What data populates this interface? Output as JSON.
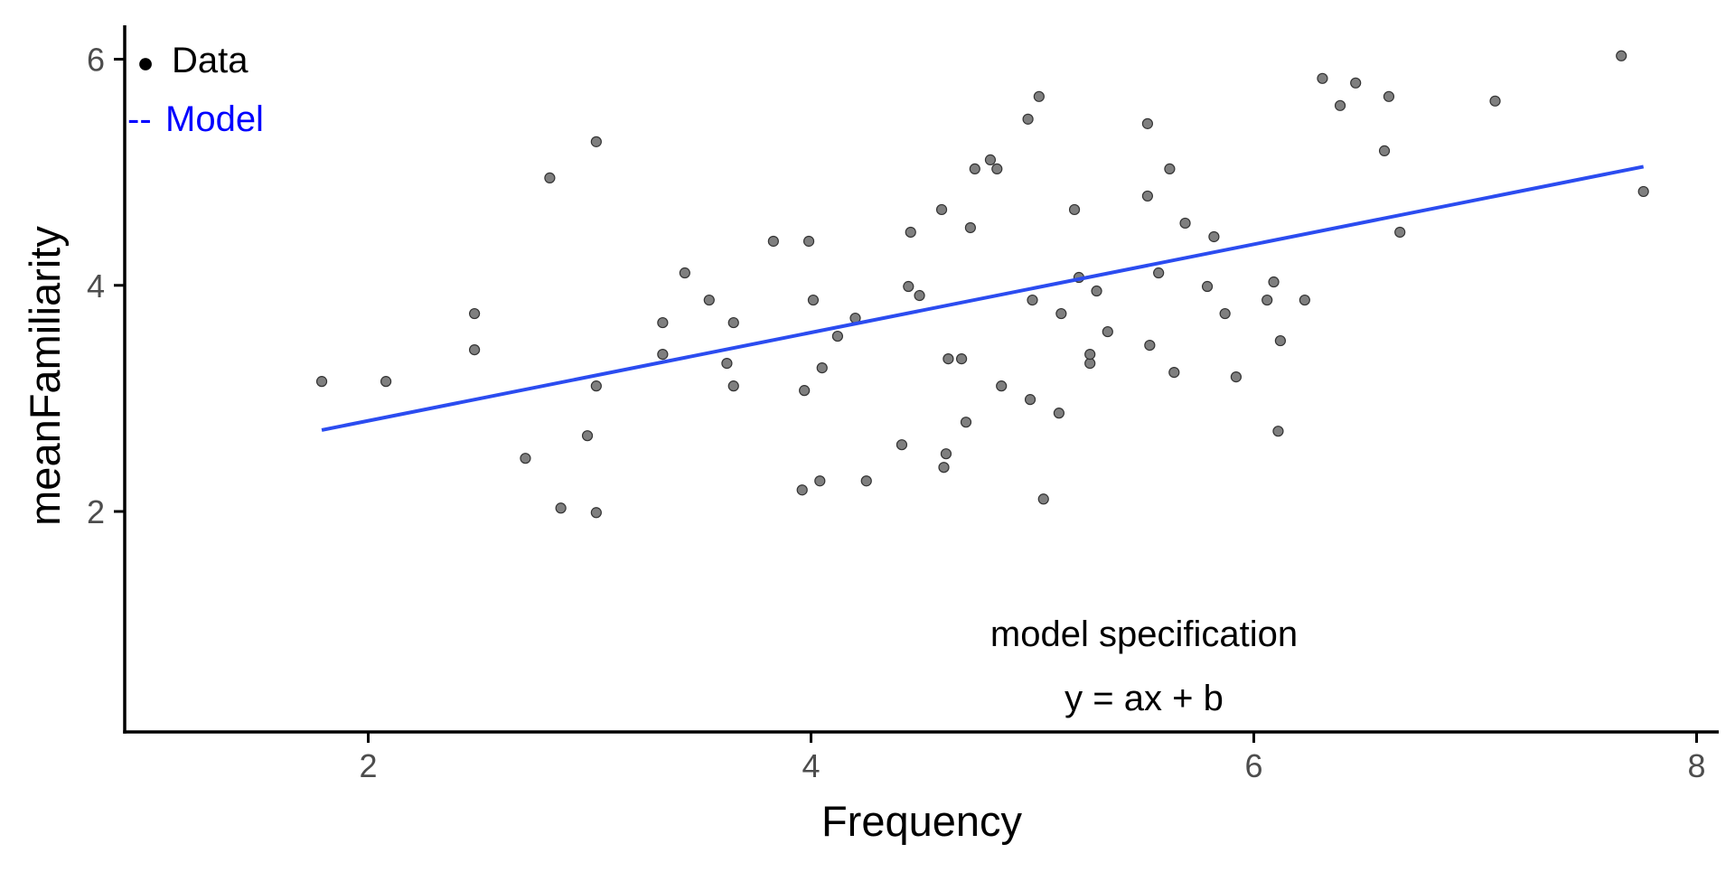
{
  "chart_data": {
    "type": "scatter",
    "title": "",
    "xlabel": "Frequency",
    "ylabel": "meanFamiliarity",
    "xlim": [
      0.9,
      8.1
    ],
    "ylim": [
      0.05,
      6.3
    ],
    "x_ticks": [
      2,
      4,
      6,
      8
    ],
    "y_ticks": [
      2,
      4,
      6
    ],
    "x_tick_labels": [
      "2",
      "4",
      "6",
      "8"
    ],
    "y_tick_labels": [
      "2",
      "4",
      "6"
    ],
    "grid": false,
    "legend": {
      "position": "top-left",
      "entries": [
        {
          "label": "Data",
          "symbol": "●",
          "color": "#000000"
        },
        {
          "label": "Model",
          "symbol": "--",
          "color": "#0000ff"
        }
      ]
    },
    "annotations": [
      "model specification",
      "y = ax + b"
    ],
    "colors": {
      "points": "#7f7f7f",
      "point_stroke": "#333333",
      "model": "#2b4cf0",
      "axis": "#000000",
      "tick_label": "#4d4d4d"
    },
    "series": [
      {
        "kind": "points",
        "x": [
          1.79,
          2.08,
          2.48,
          2.48,
          2.71,
          2.82,
          2.87,
          2.99,
          3.03,
          3.03,
          3.03,
          3.33,
          3.33,
          3.43,
          3.54,
          3.62,
          3.65,
          3.65,
          3.83,
          3.96,
          3.97,
          3.99,
          4.01,
          4.04,
          4.05,
          4.12,
          4.2,
          4.25,
          4.41,
          4.44,
          4.45,
          4.49,
          4.59,
          4.6,
          4.61,
          4.62,
          4.68,
          4.7,
          4.72,
          4.74,
          4.81,
          4.84,
          4.86,
          4.98,
          4.99,
          5.0,
          5.03,
          5.05,
          5.12,
          5.13,
          5.19,
          5.21,
          5.26,
          5.26,
          5.29,
          5.34,
          5.52,
          5.52,
          5.53,
          5.57,
          5.62,
          5.64,
          5.69,
          5.79,
          5.82,
          5.87,
          5.92,
          6.06,
          6.09,
          6.11,
          6.12,
          6.23,
          6.31,
          6.39,
          6.46,
          6.59,
          6.61,
          6.66,
          7.09,
          7.66,
          7.76
        ],
        "y": [
          3.15,
          3.15,
          3.75,
          3.43,
          2.47,
          4.95,
          2.03,
          2.67,
          5.27,
          3.11,
          1.99,
          3.67,
          3.39,
          4.11,
          3.87,
          3.31,
          3.67,
          3.11,
          4.39,
          2.19,
          3.07,
          4.39,
          3.87,
          2.27,
          3.27,
          3.55,
          3.71,
          2.27,
          2.59,
          3.99,
          4.47,
          3.91,
          4.67,
          2.39,
          2.51,
          3.35,
          3.35,
          2.79,
          4.51,
          5.03,
          5.11,
          5.03,
          3.11,
          5.47,
          2.99,
          3.87,
          5.67,
          2.11,
          2.87,
          3.75,
          4.67,
          4.07,
          3.31,
          3.39,
          3.95,
          3.59,
          4.79,
          5.43,
          3.47,
          4.11,
          5.03,
          3.23,
          4.55,
          3.99,
          4.43,
          3.75,
          3.19,
          3.87,
          4.03,
          2.71,
          3.51,
          3.87,
          5.83,
          5.59,
          5.79,
          5.19,
          5.67,
          4.47,
          5.63,
          6.03,
          4.83
        ]
      },
      {
        "kind": "line",
        "name": "Model",
        "x": [
          1.79,
          7.76
        ],
        "y": [
          2.72,
          5.05
        ]
      }
    ]
  }
}
